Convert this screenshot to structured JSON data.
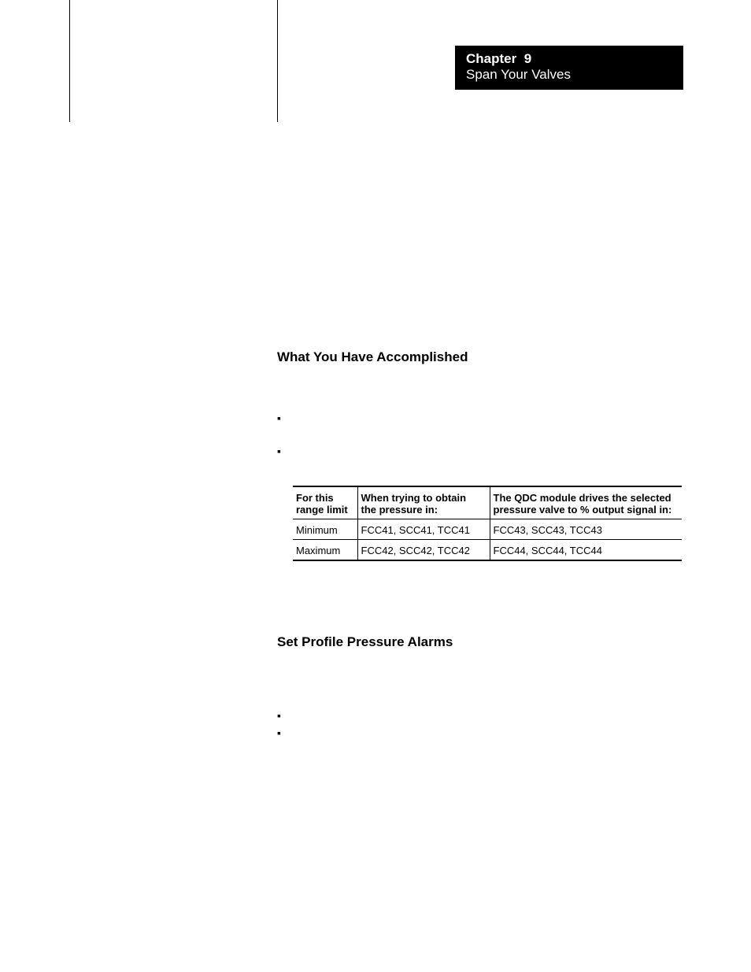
{
  "chapter": {
    "label": "Chapter",
    "number": "9",
    "subtitle": "Span Your Valves"
  },
  "sections": {
    "accomplished": {
      "heading": "What You Have Accomplished"
    },
    "alarms": {
      "heading": "Set Profile Pressure Alarms"
    }
  },
  "table": {
    "columns": [
      {
        "l1": "For this",
        "l2": "range limit"
      },
      {
        "l1": "When trying to obtain",
        "l2": "the pressure in:"
      },
      {
        "l1": "The QDC module drives the selected",
        "l2": "pressure valve to % output signal in:"
      }
    ],
    "rows": [
      [
        "Minimum",
        "FCC41, SCC41, TCC41",
        "FCC43, SCC43, TCC43"
      ],
      [
        "Maximum",
        "FCC42, SCC42, TCC42",
        "FCC44, SCC44, TCC44"
      ]
    ]
  },
  "bullets": {
    "s1b1": "▪",
    "s1b2": "▪",
    "s2b1": "▪",
    "s2b2": "▪"
  }
}
